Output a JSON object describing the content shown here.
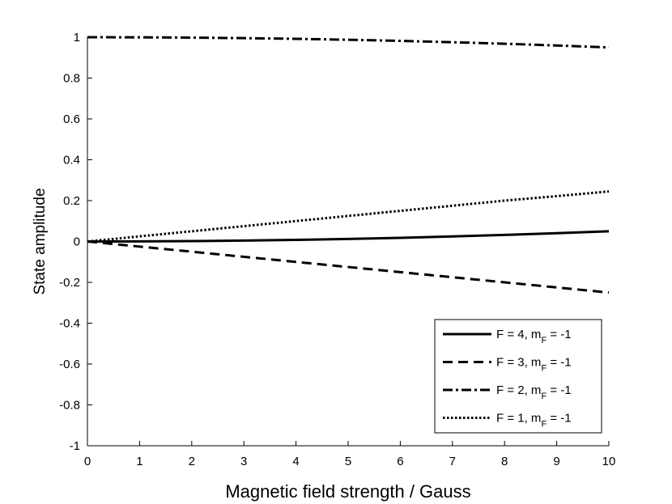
{
  "chart_data": {
    "type": "line",
    "title": "",
    "xlabel": "Magnetic field strength / Gauss",
    "ylabel": "State amplitude",
    "xlim": [
      0,
      10
    ],
    "ylim": [
      -1,
      1
    ],
    "xticks": [
      0,
      1,
      2,
      3,
      4,
      5,
      6,
      7,
      8,
      9,
      10
    ],
    "xtick_labels": [
      "0",
      "1",
      "2",
      "3",
      "4",
      "5",
      "6",
      "7",
      "8",
      "9",
      "10"
    ],
    "yticks": [
      -1,
      -0.8,
      -0.6,
      -0.4,
      -0.2,
      0,
      0.2,
      0.4,
      0.6,
      0.8,
      1
    ],
    "ytick_labels": [
      "-1",
      "-0.8",
      "-0.6",
      "-0.4",
      "-0.2",
      "0",
      "0.2",
      "0.4",
      "0.6",
      "0.8",
      "1"
    ],
    "grid": false,
    "legend_position": "bottom-right",
    "x": [
      0,
      1,
      2,
      3,
      4,
      5,
      6,
      7,
      8,
      9,
      10
    ],
    "series": [
      {
        "name": "F = 4, m_F = -1",
        "legend": {
          "main": "F = 4, m",
          "sub": "F",
          "tail": " = -1"
        },
        "style": "solid",
        "values": [
          0,
          0.0005,
          0.002,
          0.0045,
          0.008,
          0.0125,
          0.018,
          0.0245,
          0.032,
          0.0405,
          0.05
        ]
      },
      {
        "name": "F = 3, m_F = -1",
        "legend": {
          "main": "F = 3, m",
          "sub": "F",
          "tail": " = -1"
        },
        "style": "dashed",
        "values": [
          0,
          -0.025,
          -0.05,
          -0.075,
          -0.1,
          -0.125,
          -0.15,
          -0.175,
          -0.2,
          -0.225,
          -0.25
        ]
      },
      {
        "name": "F = 2, m_F = -1",
        "legend": {
          "main": "F = 2, m",
          "sub": "F",
          "tail": " = -1"
        },
        "style": "dashdot",
        "values": [
          1,
          0.9995,
          0.998,
          0.9955,
          0.992,
          0.9875,
          0.982,
          0.9755,
          0.968,
          0.9595,
          0.95
        ]
      },
      {
        "name": "F = 1, m_F = -1",
        "legend": {
          "main": "F = 1, m",
          "sub": "F",
          "tail": " = -1"
        },
        "style": "dotted",
        "values": [
          0,
          0.025,
          0.05,
          0.075,
          0.1,
          0.125,
          0.15,
          0.175,
          0.2,
          0.222,
          0.245
        ]
      }
    ],
    "line_color": "#000000"
  }
}
